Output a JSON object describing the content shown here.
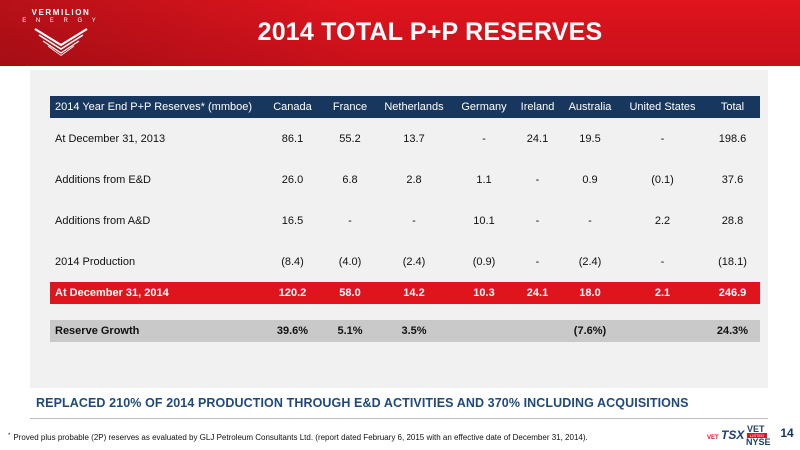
{
  "logo": {
    "name": "VERMILION",
    "sub": "E N E R G Y"
  },
  "slide": {
    "title": "2014 TOTAL P+P RESERVES",
    "page_number": "14"
  },
  "table": {
    "headers": [
      "2014 Year End P+P Reserves* (mmboe)",
      "Canada",
      "France",
      "Netherlands",
      "Germany",
      "Ireland",
      "Australia",
      "United States",
      "Total"
    ],
    "rows": [
      [
        "At December 31, 2013",
        "86.1",
        "55.2",
        "13.7",
        "-",
        "24.1",
        "19.5",
        "-",
        "198.6"
      ],
      [
        "Additions from E&D",
        "26.0",
        "6.8",
        "2.8",
        "1.1",
        "-",
        "0.9",
        "(0.1)",
        "37.6"
      ],
      [
        "Additions from A&D",
        "16.5",
        "-",
        "-",
        "10.1",
        "-",
        "-",
        "2.2",
        "28.8"
      ],
      [
        "2014 Production",
        "(8.4)",
        "(4.0)",
        "(2.4)",
        "(0.9)",
        "-",
        "(2.4)",
        "-",
        "(18.1)"
      ]
    ],
    "total_row": [
      "At December 31, 2014",
      "120.2",
      "58.0",
      "14.2",
      "10.3",
      "24.1",
      "18.0",
      "2.1",
      "246.9"
    ],
    "growth_row": [
      "Reserve Growth",
      "39.6%",
      "5.1%",
      "3.5%",
      "",
      "",
      "(7.6%)",
      "",
      "24.3%"
    ]
  },
  "callout": "REPLACED 210% OF 2014 PRODUCTION THROUGH E&D ACTIVITIES AND 370% INCLUDING ACQUISITIONS",
  "footnote": {
    "marker": "*",
    "text": "Proved plus probable (2P) reserves as evaluated by GLJ Petroleum Consultants Ltd. (report dated February 6, 2015 with an effective date of December 31, 2014)."
  },
  "badge": {
    "vet_small": "VET",
    "tsx": "TSX",
    "vet_large": "VET",
    "listed": "LISTED",
    "nyse": "NYSE"
  },
  "colors": {
    "brand_red": "#e0141d",
    "navy": "#17375e",
    "callout_blue": "#1f497d",
    "panel_grey": "#f1f1f1",
    "growth_grey": "#c9c9c9"
  },
  "icons": {
    "logo_mark": "vermilion-chevron-icon"
  }
}
